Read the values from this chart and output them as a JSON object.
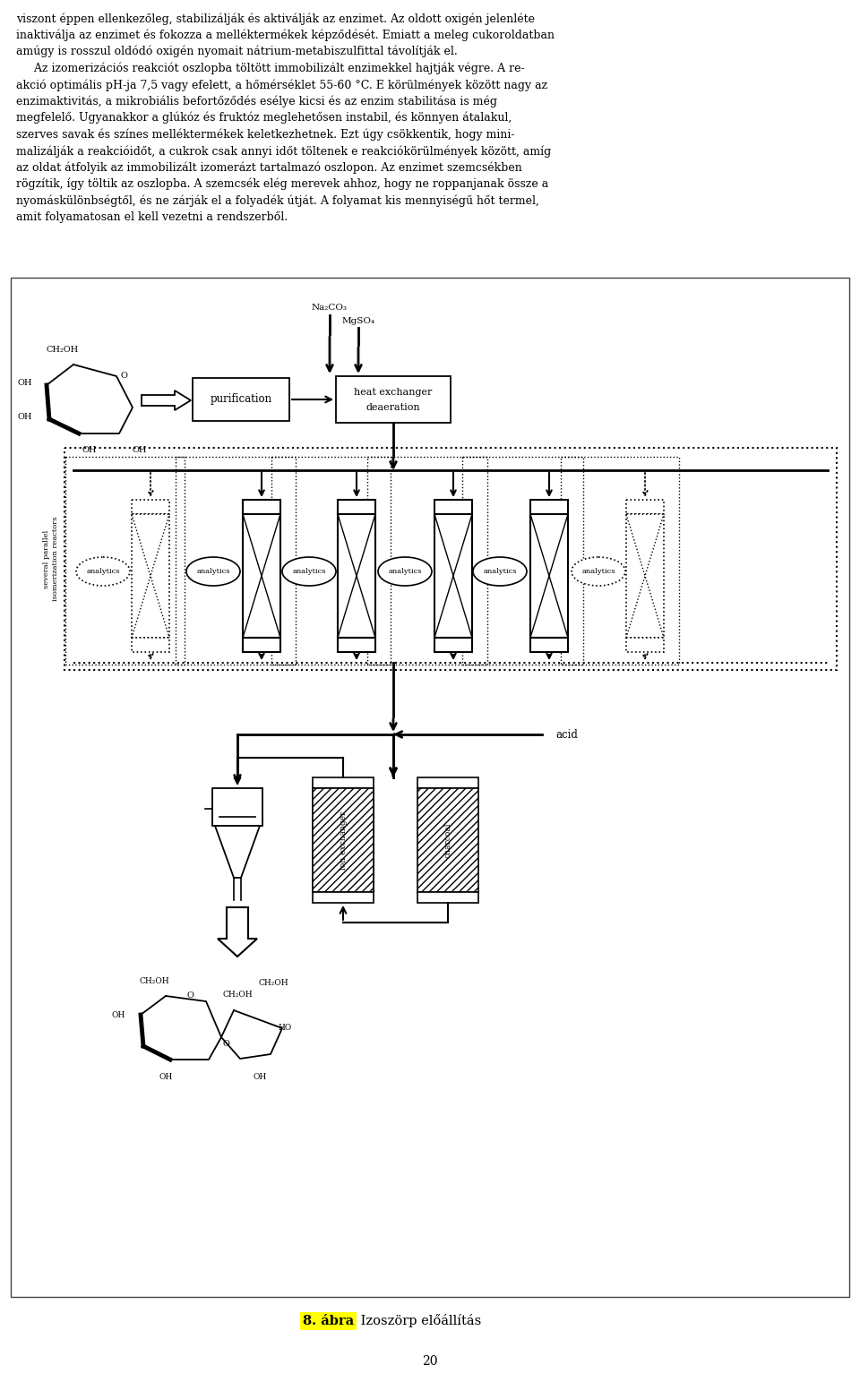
{
  "bg_color": "#ffffff",
  "text_color": "#000000",
  "highlight_color": "#ffff00",
  "page_number": "20",
  "caption_highlight": "8. ábra",
  "caption_rest": " Izoszörp előállítás",
  "text_lines": [
    "viszont éppen ellenkezőleg, stabilizálják és aktiválják az enzimet. Az oldott oxigén jelenléte",
    "inaktiválja az enzimet és fokozza a melléktermékek képződését. Emiatt a meleg cukoroldatban",
    "amúgy is rosszul oldódó oxigén nyomait nátrium-metabiszulfittal távolítják el.",
    "     Az izomerizációs reakciót oszlopba töltött immobilizált enzimekkel hajtják végre. A re-",
    "akció optimális pH-ja 7,5 vagy efelett, a hőmérséklet 55-60 °C. E körülmények között nagy az",
    "enzimaktivitás, a mikrobiális befortőződés esélye kicsi és az enzim stabilitása is még",
    "megfelelő. Ugyanakkor a glúkóz és fruktóz meglehetősen instabil, és könnyen átalakul,",
    "szerves savak és színes melléktermékek keletkezhetnek. Ezt úgy csökkentik, hogy mini-",
    "malizálják a reakcióidőt, a cukrok csak annyi időt töltenek e reakciókörülmények között, amíg",
    "az oldat átfolyik az immobilizált izomerázt tartalmazó oszlopon. Az enzimet szemcsékben",
    "rögzítik, így töltik az oszlopba. A szemcsék elég merevek ahhoz, hogy ne roppanjanak össze a",
    "nyomáskülönbségtől, és ne zárják el a folyadék útját. A folyamat kis mennyiségű hőt termel,",
    "amit folyamatosan el kell vezetni a rendszerből."
  ]
}
